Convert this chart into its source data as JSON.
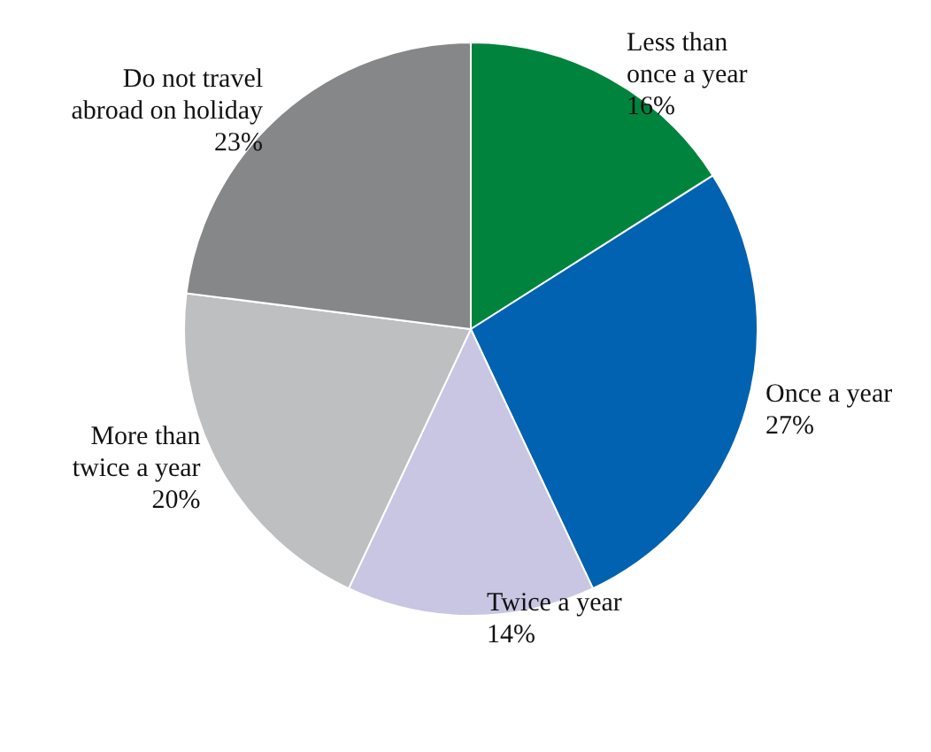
{
  "chart_data": {
    "type": "pie",
    "categories": [
      "Less than\nonce a year",
      "Once a year",
      "Twice a year",
      "More than\ntwice a year",
      "Do not travel\nabroad on holiday"
    ],
    "values": [
      16,
      27,
      14,
      20,
      23
    ],
    "colors": [
      "#00843d",
      "#0062b1",
      "#c8c6e3",
      "#bebfc0",
      "#858788"
    ],
    "value_labels": [
      "16%",
      "27%",
      "14%",
      "20%",
      "23%"
    ]
  }
}
